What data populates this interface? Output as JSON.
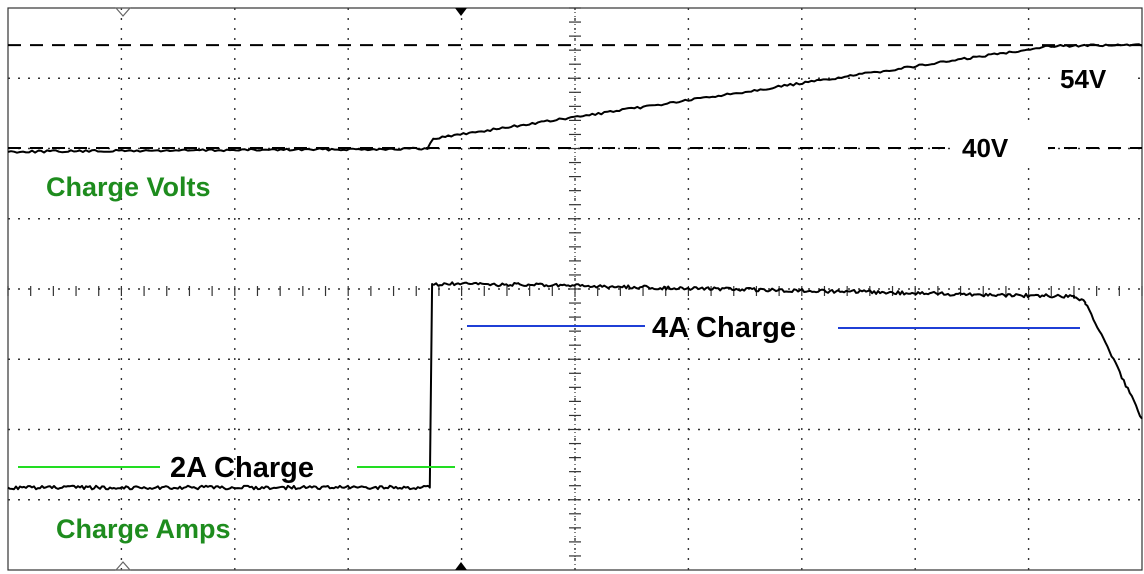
{
  "chart_data": {
    "type": "line",
    "title": "",
    "xlabel": "",
    "ylabel": "",
    "grid": true,
    "x_divisions": 10,
    "y_divisions": 8,
    "series": [
      {
        "name": "Charge Volts",
        "color": "#000000",
        "x": [
          0,
          3.7,
          3.75,
          9.2,
          10
        ],
        "y": [
          -0.05,
          -0.01,
          0.13,
          1.39,
          1.4
        ],
        "unit_hint": "V"
      },
      {
        "name": "Charge Amps",
        "color": "#000000",
        "x": [
          0,
          3.72,
          3.74,
          4.5,
          9.4,
          9.5,
          10
        ],
        "y": [
          -4.62,
          -4.62,
          -1.85,
          -1.86,
          -2.02,
          -2.1,
          -3.68
        ],
        "unit_hint": "A"
      }
    ],
    "reference_lines": [
      {
        "label": "54V",
        "y": 1.4
      },
      {
        "label": "40V",
        "y": 0.0
      }
    ],
    "annotations": [
      {
        "text": "Charge Volts",
        "color": "#1e8c1e"
      },
      {
        "text": "Charge Amps",
        "color": "#1e8c1e"
      },
      {
        "text": "2A Charge",
        "line_color": "#22dd22",
        "level": "-4.0"
      },
      {
        "text": "4A Charge",
        "line_color": "#1f3fd6",
        "level": "-2.3"
      }
    ]
  }
}
